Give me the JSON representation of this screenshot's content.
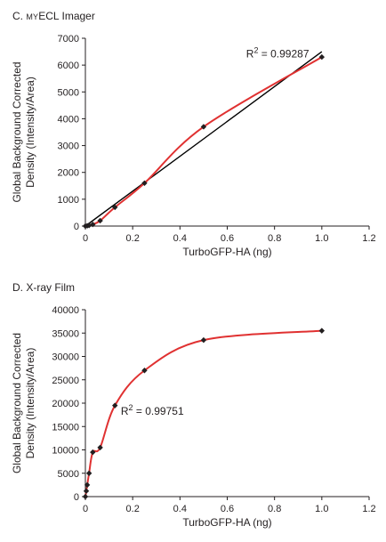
{
  "chart_data": [
    {
      "panel_letter": "C.",
      "title_prefix": "my",
      "title_rest": "ECL Imager",
      "type": "scatter",
      "xlabel": "TurboGFP-HA (ng)",
      "ylabel_line1": "Global Background Corrected",
      "ylabel_line2": "Density (Intensity/Area)",
      "xlim": [
        0,
        1.2
      ],
      "ylim": [
        0,
        7000
      ],
      "x_ticks": [
        0,
        0.2,
        0.4,
        0.6,
        0.8,
        1,
        1.2
      ],
      "x_tick_labels": [
        "0",
        "0.2",
        "0.4",
        "0.6",
        "0.8",
        "1.0",
        "1.2"
      ],
      "y_ticks": [
        0,
        1000,
        2000,
        3000,
        4000,
        5000,
        6000,
        7000
      ],
      "y_tick_labels": [
        "0",
        "1000",
        "2000",
        "3000",
        "4000",
        "5000",
        "6000",
        "7000"
      ],
      "series": [
        {
          "x": [
            0,
            0.0078,
            0.0156,
            0.03125,
            0.0625,
            0.125,
            0.25,
            0.5,
            1.0
          ],
          "y": [
            0,
            10,
            25,
            60,
            200,
            700,
            1600,
            3700,
            6300
          ],
          "marker_color": "#231f20",
          "curve_color": "#e03131"
        }
      ],
      "linear_fit": {
        "x": [
          0,
          1.0
        ],
        "y": [
          0,
          6500
        ],
        "color": "#000000"
      },
      "annotation": {
        "r2_prefix": "R",
        "r2_exp": "2",
        "r2_value": " = 0.99287",
        "x": 0.68,
        "y": 6290
      }
    },
    {
      "panel_letter": "D.",
      "title_rest": "X-ray Film",
      "type": "scatter",
      "xlabel": "TurboGFP-HA (ng)",
      "ylabel_line1": "Global Background Corrected",
      "ylabel_line2": "Density (Intensity/Area)",
      "xlim": [
        0,
        1.2
      ],
      "ylim": [
        0,
        40000
      ],
      "x_ticks": [
        0,
        0.2,
        0.4,
        0.6,
        0.8,
        1,
        1.2
      ],
      "x_tick_labels": [
        "0",
        "0.2",
        "0.4",
        "0.6",
        "0.8",
        "1.0",
        "1.2"
      ],
      "y_ticks": [
        0,
        5000,
        10000,
        15000,
        20000,
        25000,
        30000,
        35000,
        40000
      ],
      "y_tick_labels": [
        "0",
        "5000",
        "10000",
        "15000",
        "20000",
        "25000",
        "30000",
        "35000",
        "40000"
      ],
      "series": [
        {
          "x": [
            0,
            0.0039,
            0.0078,
            0.0156,
            0.03125,
            0.0625,
            0.125,
            0.25,
            0.5,
            1.0
          ],
          "y": [
            0,
            1200,
            2500,
            5000,
            9500,
            10500,
            19500,
            27000,
            33500,
            35500
          ],
          "marker_color": "#231f20",
          "curve_color": "#e03131"
        }
      ],
      "annotation": {
        "r2_prefix": "R",
        "r2_exp": "2",
        "r2_value": " = 0.99751",
        "x": 0.15,
        "y": 17500
      }
    }
  ]
}
